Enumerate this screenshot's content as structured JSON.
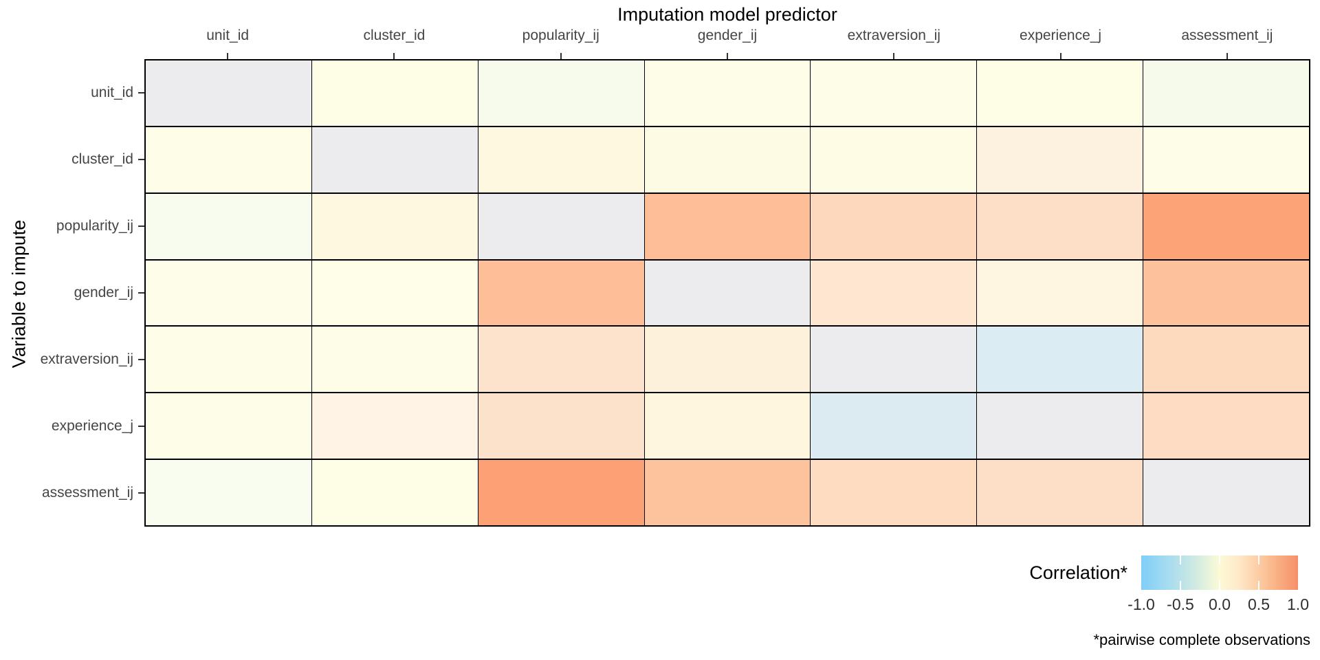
{
  "title": "Imputation model predictor",
  "y_axis_title": "Variable to impute",
  "footnote": "*pairwise complete observations",
  "legend": {
    "title": "Correlation*",
    "tick_labels": [
      "-1.0",
      "-0.5",
      "0.0",
      "0.5",
      "1.0"
    ],
    "gradient_stops": [
      "#7FCEF8",
      "#9CD8F2",
      "#B9E2EA",
      "#D8EDDF",
      "#FCFAD7",
      "#FEE8C8",
      "#FCCDA4",
      "#F9AE82",
      "#F5906A"
    ]
  },
  "chart_data": {
    "type": "heatmap",
    "title": "Imputation model predictor",
    "xlabel": "Imputation model predictor",
    "ylabel": "Variable to impute",
    "x_categories": [
      "unit_id",
      "cluster_id",
      "popularity_ij",
      "gender_ij",
      "extraversion_ij",
      "experience_j",
      "assessment_ij"
    ],
    "y_categories": [
      "unit_id",
      "cluster_id",
      "popularity_ij",
      "gender_ij",
      "extraversion_ij",
      "experience_j",
      "assessment_ij"
    ],
    "value_meaning": "pairwise correlation, estimated from cell color; diagonal = not applicable (grey)",
    "values": [
      [
        null,
        0.02,
        -0.05,
        0.02,
        0.02,
        0.02,
        -0.05
      ],
      [
        0.02,
        null,
        0.07,
        0.04,
        0.03,
        0.12,
        0.02
      ],
      [
        -0.05,
        0.07,
        null,
        0.5,
        0.3,
        0.25,
        0.7
      ],
      [
        0.02,
        0.01,
        0.5,
        null,
        0.18,
        0.08,
        0.45
      ],
      [
        0.01,
        0.02,
        0.22,
        0.11,
        null,
        -0.2,
        0.28
      ],
      [
        0.02,
        0.1,
        0.23,
        0.07,
        -0.2,
        null,
        0.27
      ],
      [
        -0.05,
        0.02,
        0.7,
        0.45,
        0.27,
        0.25,
        null
      ]
    ],
    "cell_colors": [
      [
        "#ECECEE",
        "#FEFDE6",
        "#F7FBEC",
        "#FEFDE7",
        "#FDFDE8",
        "#FEFDE6",
        "#F6FAEB"
      ],
      [
        "#FEFDE8",
        "#ECECEE",
        "#FEF8E1",
        "#FEFBE5",
        "#FEFCE5",
        "#FDF1DF",
        "#FDFDE8"
      ],
      [
        "#F8FCEE",
        "#FEF8E1",
        "#ECECEE",
        "#FDBE98",
        "#FDD8BC",
        "#FDDFC8",
        "#FCA478"
      ],
      [
        "#FEFDE9",
        "#FEFEE9",
        "#FDBE98",
        "#ECECEE",
        "#FEE7D0",
        "#FEF6E0",
        "#FDC29C"
      ],
      [
        "#FEFEE8",
        "#FEFDE7",
        "#FDE3CC",
        "#FEF1DC",
        "#ECECEE",
        "#DCECF3",
        "#FDDABE"
      ],
      [
        "#FEFDE8",
        "#FEF3E4",
        "#FDE2CB",
        "#FEF7DE",
        "#DCEBF2",
        "#ECECEE",
        "#FDDCC3"
      ],
      [
        "#F8FDF0",
        "#FEFDE6",
        "#FCA075",
        "#FDC39C",
        "#FDDCC2",
        "#FDDFC7",
        "#ECECEE"
      ]
    ],
    "colorscale": {
      "domain": [
        -1.0,
        1.0
      ],
      "ticks": [
        -1.0,
        -0.5,
        0.0,
        0.5,
        1.0
      ],
      "negative_color": "#7FCEF8",
      "zero_color": "#FCFAD7",
      "positive_color": "#F5906A",
      "na_color": "#ECECEE"
    },
    "grid": true,
    "legend_position": "bottom-right",
    "footnote": "*pairwise complete observations"
  }
}
